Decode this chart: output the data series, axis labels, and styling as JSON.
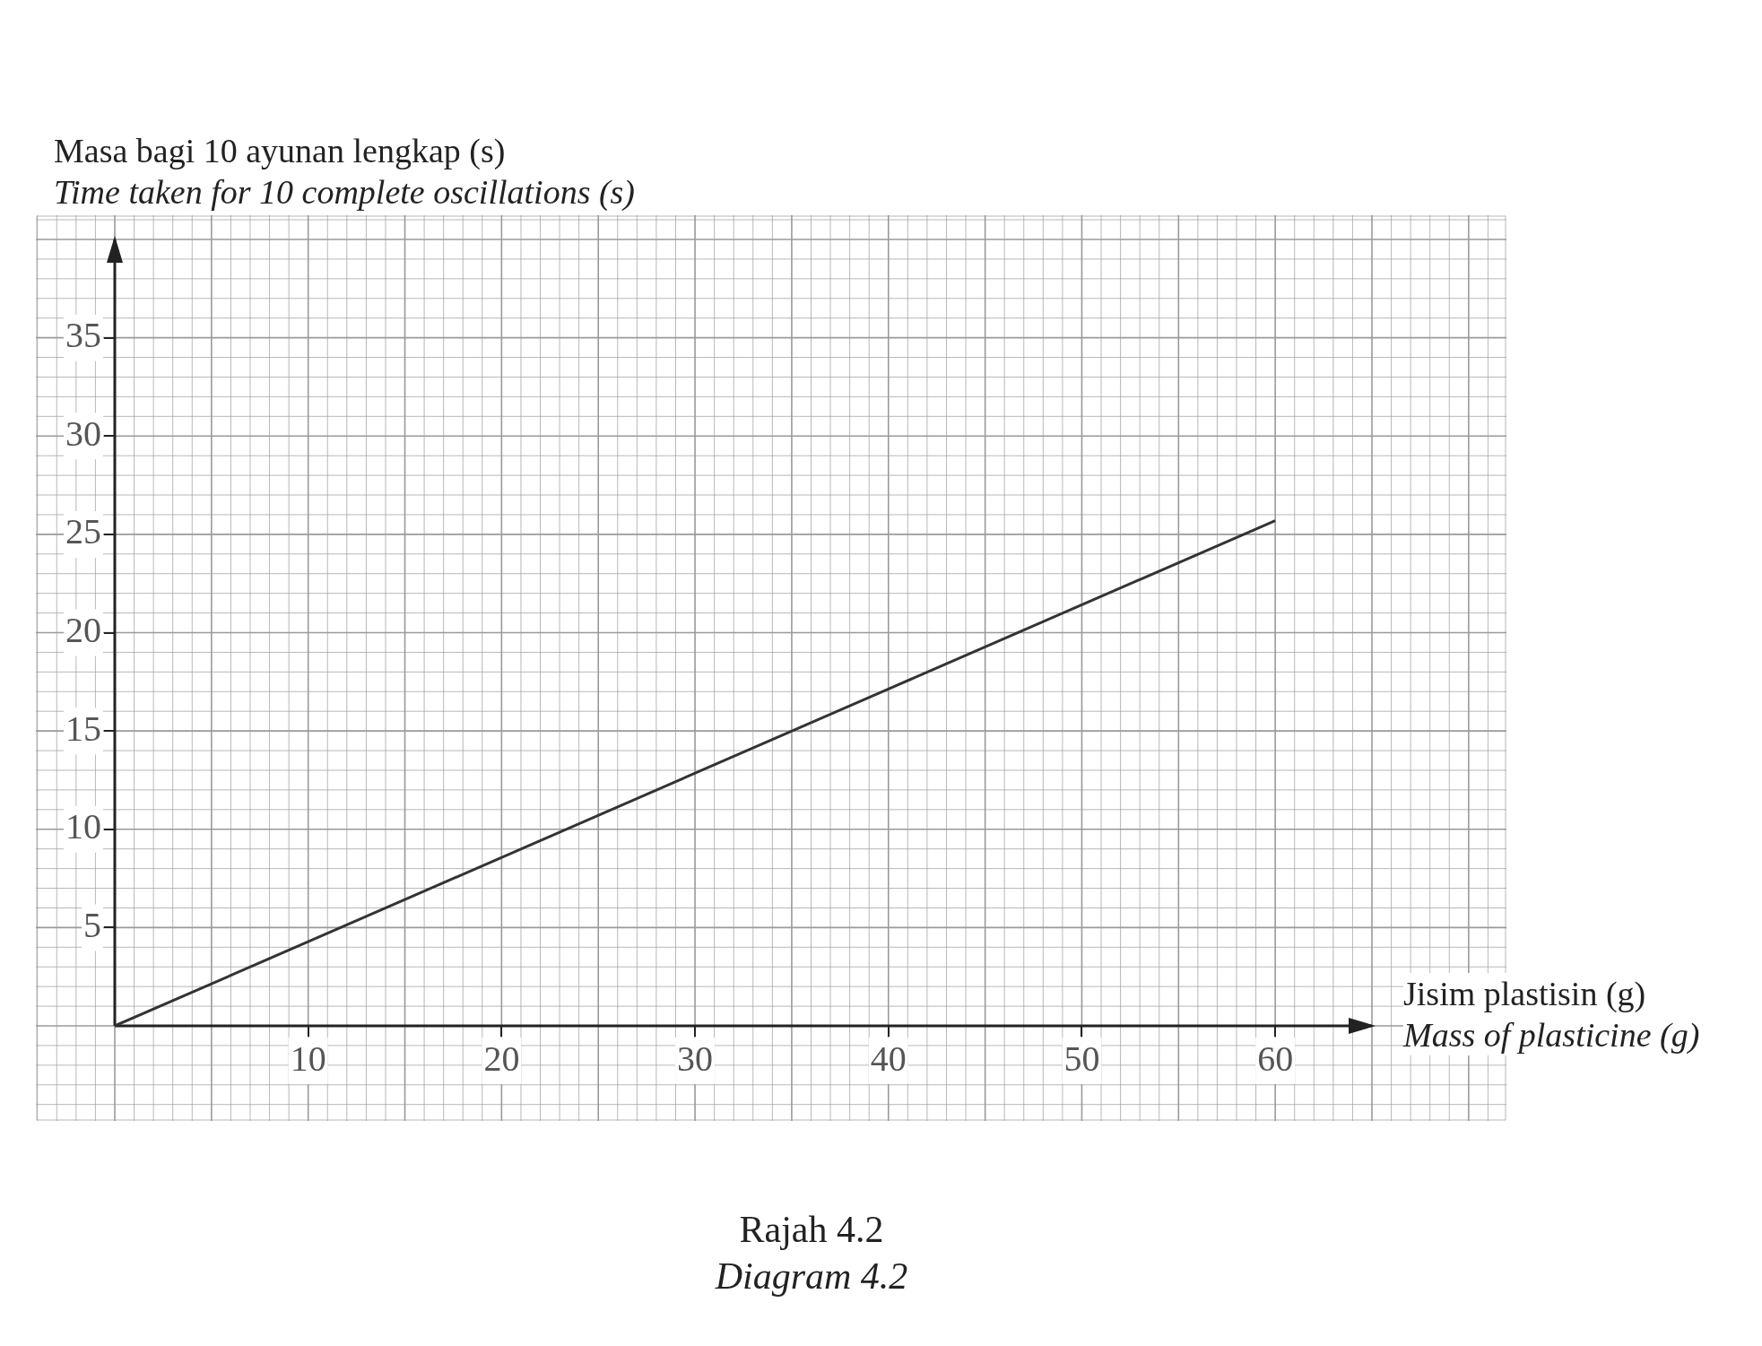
{
  "chart_data": {
    "type": "line",
    "ylabel": "Masa bagi 10 ayunan lengkap (s)\nTime taken for 10 complete oscillations (s)",
    "xlabel": "Jisim plastisin (g)\nMass of plasticine (g)",
    "annotations": [
      "Rajah 4.2\nDiagram 4.2"
    ],
    "x": [
      0,
      60
    ],
    "series": [
      {
        "color": "#333333",
        "values": [
          0,
          25.7
        ]
      }
    ],
    "xlim": [
      0,
      65
    ],
    "xticks": [
      10,
      20,
      30,
      40,
      50,
      60
    ],
    "ylim": [
      0,
      40
    ],
    "yticks": [
      5,
      10,
      15,
      20,
      25,
      30,
      35
    ],
    "grid": true,
    "legend": false,
    "marker": "none",
    "line_style": "solid"
  }
}
